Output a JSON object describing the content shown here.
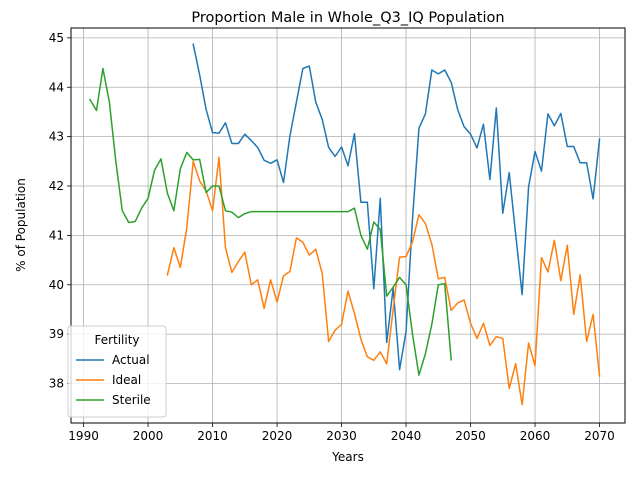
{
  "chart_data": {
    "type": "line",
    "title": "Proportion Male in Whole_Q3_IQ Population",
    "xlabel": "Years",
    "ylabel": "% of Population",
    "xlim": [
      1988.05,
      2073.95
    ],
    "ylim": [
      37.2,
      45.2
    ],
    "xticks": [
      1990,
      2000,
      2010,
      2020,
      2030,
      2040,
      2050,
      2060,
      2070
    ],
    "yticks": [
      38,
      39,
      40,
      41,
      42,
      43,
      44,
      45
    ],
    "grid": true,
    "legend": {
      "title": "Fertility",
      "placement": "lower-left"
    },
    "series": [
      {
        "name": "Actual",
        "color": "#1f77b4",
        "x": [
          2007,
          2008,
          2009,
          2010,
          2011,
          2012,
          2013,
          2014,
          2015,
          2016,
          2017,
          2018,
          2019,
          2020,
          2021,
          2022,
          2023,
          2024,
          2025,
          2026,
          2027,
          2028,
          2029,
          2030,
          2031,
          2032,
          2033,
          2034,
          2035,
          2036,
          2037,
          2038,
          2039,
          2040,
          2041,
          2042,
          2043,
          2044,
          2045,
          2046,
          2047,
          2048,
          2049,
          2050,
          2051,
          2052,
          2053,
          2054,
          2055,
          2056,
          2057,
          2058,
          2059,
          2060,
          2061,
          2062,
          2063,
          2064,
          2065,
          2066,
          2067,
          2068,
          2069,
          2070
        ],
        "y": [
          44.87,
          44.25,
          43.55,
          43.08,
          43.07,
          43.28,
          42.86,
          42.86,
          43.05,
          42.92,
          42.78,
          42.52,
          42.46,
          42.53,
          42.07,
          43.02,
          43.7,
          44.38,
          44.43,
          43.7,
          43.35,
          42.78,
          42.6,
          42.79,
          42.41,
          43.06,
          41.67,
          41.67,
          39.92,
          41.75,
          38.83,
          39.93,
          38.28,
          39.05,
          41.33,
          43.17,
          43.46,
          44.35,
          44.27,
          44.35,
          44.1,
          43.55,
          43.2,
          43.05,
          42.77,
          43.25,
          42.13,
          43.58,
          41.45,
          42.27,
          41.02,
          39.8,
          41.98,
          42.7,
          42.3,
          43.46,
          43.22,
          43.47,
          42.8,
          42.8,
          42.47,
          42.47,
          41.74,
          42.95
        ]
      },
      {
        "name": "Ideal",
        "color": "#ff7f0e",
        "x": [
          2003,
          2004,
          2005,
          2006,
          2007,
          2008,
          2009,
          2010,
          2011,
          2012,
          2013,
          2014,
          2015,
          2016,
          2017,
          2018,
          2019,
          2020,
          2021,
          2022,
          2023,
          2024,
          2025,
          2026,
          2027,
          2028,
          2029,
          2030,
          2031,
          2032,
          2033,
          2034,
          2035,
          2036,
          2037,
          2038,
          2039,
          2040,
          2041,
          2042,
          2043,
          2044,
          2045,
          2046,
          2047,
          2048,
          2049,
          2050,
          2051,
          2052,
          2053,
          2054,
          2055,
          2056,
          2057,
          2058,
          2059,
          2060,
          2061,
          2062,
          2063,
          2064,
          2065,
          2066,
          2067,
          2068,
          2069,
          2070
        ],
        "y": [
          40.2,
          40.75,
          40.35,
          41.15,
          42.5,
          42.1,
          41.9,
          41.5,
          42.58,
          40.75,
          40.25,
          40.47,
          40.66,
          40.0,
          40.1,
          39.52,
          40.1,
          39.65,
          40.18,
          40.27,
          40.95,
          40.86,
          40.6,
          40.72,
          40.23,
          38.85,
          39.08,
          39.2,
          39.87,
          39.42,
          38.9,
          38.54,
          38.47,
          38.64,
          38.4,
          39.5,
          40.56,
          40.57,
          40.87,
          41.42,
          41.24,
          40.82,
          40.12,
          40.15,
          39.48,
          39.63,
          39.69,
          39.22,
          38.91,
          39.22,
          38.77,
          38.95,
          38.91,
          37.9,
          38.4,
          37.57,
          38.82,
          38.36,
          40.55,
          40.26,
          40.9,
          40.08,
          40.8,
          39.4,
          40.2,
          38.85,
          39.4,
          38.15
        ]
      },
      {
        "name": "Sterile",
        "color": "#2ca02c",
        "x": [
          1991,
          1992,
          1993,
          1994,
          1995,
          1996,
          1997,
          1998,
          1999,
          2000,
          2001,
          2002,
          2003,
          2004,
          2005,
          2006,
          2007,
          2008,
          2009,
          2010,
          2011,
          2012,
          2013,
          2014,
          2015,
          2016,
          2017,
          2018,
          2019,
          2020,
          2021,
          2022,
          2023,
          2024,
          2025,
          2026,
          2027,
          2028,
          2029,
          2030,
          2031,
          2032,
          2033,
          2034,
          2035,
          2036,
          2037,
          2038,
          2039,
          2040,
          2041,
          2042,
          2043,
          2044,
          2045,
          2046,
          2047
        ],
        "y": [
          43.75,
          43.53,
          44.38,
          43.7,
          42.5,
          41.5,
          41.26,
          41.28,
          41.55,
          41.75,
          42.32,
          42.55,
          41.85,
          41.5,
          42.35,
          42.68,
          42.53,
          42.54,
          41.87,
          42.0,
          42.0,
          41.5,
          41.47,
          41.36,
          41.44,
          41.48,
          41.48,
          41.48,
          41.48,
          41.48,
          41.48,
          41.48,
          41.48,
          41.48,
          41.48,
          41.48,
          41.48,
          41.48,
          41.48,
          41.48,
          41.48,
          41.55,
          41.0,
          40.72,
          41.27,
          41.12,
          39.77,
          39.95,
          40.15,
          40.0,
          39.0,
          38.17,
          38.6,
          39.2,
          40.0,
          40.02,
          38.48
        ]
      }
    ]
  }
}
